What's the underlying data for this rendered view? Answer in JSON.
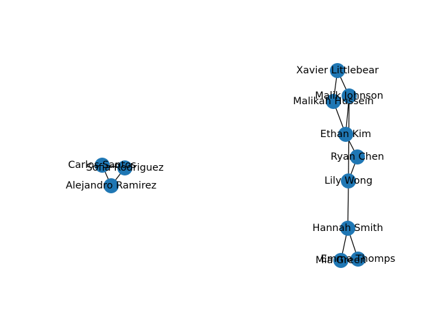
{
  "graph": {
    "node_color": "#1f77b4",
    "edge_color": "#000000",
    "background": "#ffffff",
    "nodes": [
      {
        "id": "carlos",
        "label": "Carlos Santos"
      },
      {
        "id": "sofia",
        "label": "Sofia Rodriguez"
      },
      {
        "id": "alejandro",
        "label": "Alejandro Ramirez"
      },
      {
        "id": "xavier",
        "label": "Xavier Littlebear"
      },
      {
        "id": "malik",
        "label": "Malik Johnson"
      },
      {
        "id": "malikah",
        "label": "Malikah Hussein"
      },
      {
        "id": "ethan",
        "label": "Ethan Kim"
      },
      {
        "id": "ryan",
        "label": "Ryan Chen"
      },
      {
        "id": "lily",
        "label": "Lily Wong"
      },
      {
        "id": "hannah",
        "label": "Hannah Smith"
      },
      {
        "id": "emma",
        "label": "Emma Thomps"
      },
      {
        "id": "mia",
        "label": "Mia Green"
      }
    ],
    "edges": [
      [
        "carlos",
        "sofia"
      ],
      [
        "carlos",
        "alejandro"
      ],
      [
        "sofia",
        "alejandro"
      ],
      [
        "xavier",
        "malik"
      ],
      [
        "xavier",
        "malikah"
      ],
      [
        "malikah",
        "ethan"
      ],
      [
        "malik",
        "ethan"
      ],
      [
        "malik",
        "lily"
      ],
      [
        "ethan",
        "ryan"
      ],
      [
        "ryan",
        "lily"
      ],
      [
        "lily",
        "hannah"
      ],
      [
        "hannah",
        "emma"
      ],
      [
        "hannah",
        "mia"
      ]
    ]
  }
}
